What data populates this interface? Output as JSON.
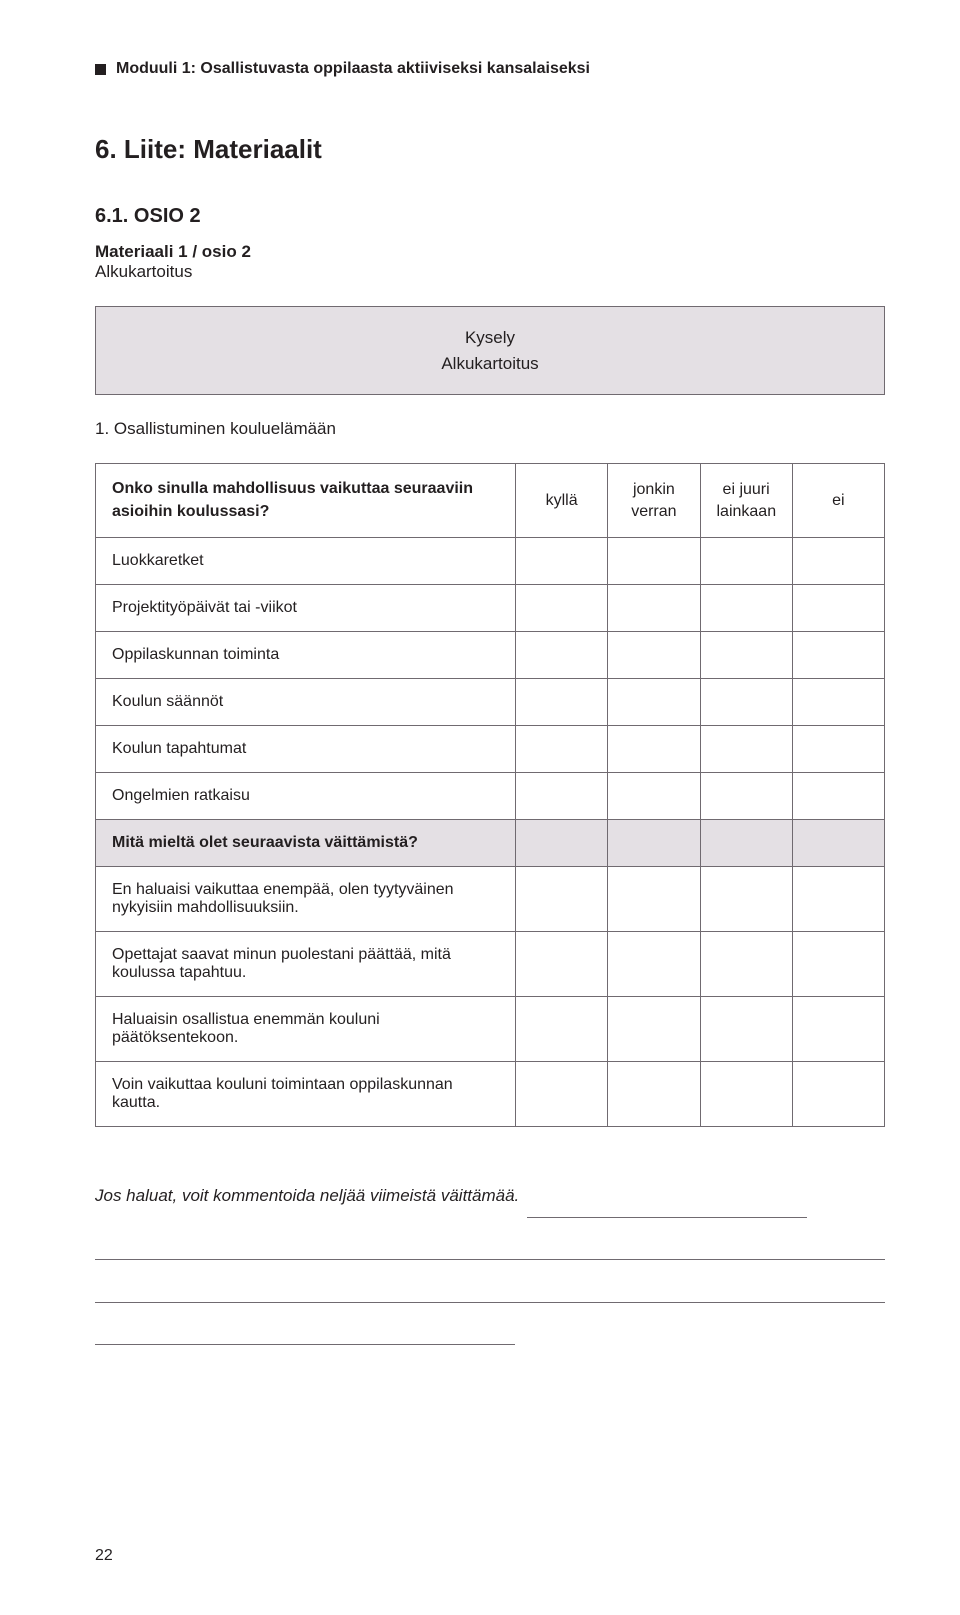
{
  "colors": {
    "text": "#231f20",
    "border": "#706a70",
    "fill": "#e4e0e4",
    "background": "#ffffff"
  },
  "header": {
    "module": "Moduuli 1: Osallistuvasta oppilaasta aktiiviseksi kansalaiseksi"
  },
  "h2": "6.  Liite: Materiaalit",
  "h3": "6.1.  OSIO 2",
  "h4": "Materiaali 1 / osio 2",
  "subtext": "Alkukartoitus",
  "titlebox": {
    "line1": "Kysely",
    "line2": "Alkukartoitus"
  },
  "section_title": "1. Osallistuminen kouluelämään",
  "table": {
    "question_header": "Onko sinulla mahdollisuus vaikuttaa seuraaviin asioihin koulussasi?",
    "options": [
      "kyllä",
      "jonkin verran",
      "ei juuri lainkaan",
      "ei"
    ],
    "rows": [
      {
        "label": "Luokkaretket",
        "subheader": false
      },
      {
        "label": "Projektityöpäivät tai -viikot",
        "subheader": false
      },
      {
        "label": "Oppilaskunnan toiminta",
        "subheader": false
      },
      {
        "label": "Koulun säännöt",
        "subheader": false
      },
      {
        "label": "Koulun tapahtumat",
        "subheader": false
      },
      {
        "label": "Ongelmien ratkaisu",
        "subheader": false
      },
      {
        "label": "Mitä mieltä olet seuraavista väittämistä?",
        "subheader": true
      },
      {
        "label": "En haluaisi vaikuttaa enempää, olen tyytyväinen nykyisiin mahdollisuuksiin.",
        "subheader": false
      },
      {
        "label": "Opettajat saavat minun puolestani päättää, mitä koulussa tapahtuu.",
        "subheader": false
      },
      {
        "label": "Haluaisin osallistua enemmän kouluni päätöksentekoon.",
        "subheader": false
      },
      {
        "label": "Voin vaikuttaa kouluni toimintaan oppilaskunnan kautta.",
        "subheader": false
      }
    ]
  },
  "comment": {
    "label": "Jos haluat, voit kommentoida neljää viimeistä väittämää.",
    "first_line_underline_width": 280,
    "full_line_underline_width": 790,
    "last_line_underline_width": 420,
    "full_lines": 2
  },
  "page_number": "22"
}
